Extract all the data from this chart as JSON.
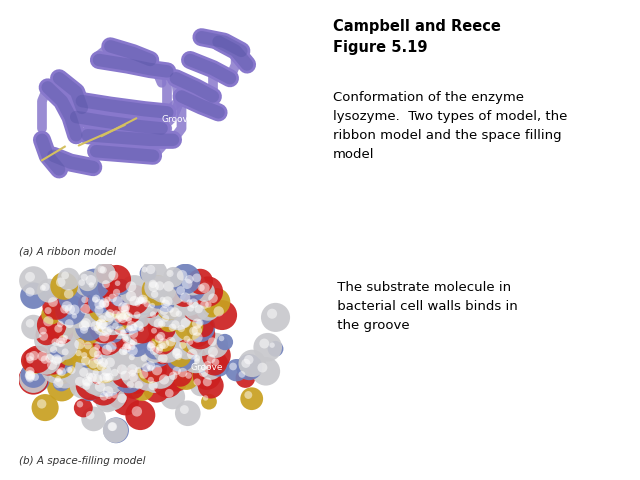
{
  "title_bold": "Campbell and Reece\nFigure 5.19",
  "description": "Conformation of the enzyme\nlysozyme.  Two types of model, the\nribbon model and the space filling\nmodel",
  "note": " The substrate molecule in\n bacterial cell walls binds in\n the groove",
  "caption_a": "(a) A ribbon model",
  "caption_b": "(b) A space-filling model",
  "groove_label": "Groove",
  "bg_color": "#ffffff",
  "image_bg": "#1a1a1a",
  "title_fontsize": 10.5,
  "desc_fontsize": 9.5,
  "caption_fontsize": 7.5,
  "ribbon_color": "#8878cc",
  "ribbon_dark": "#5050a0",
  "sphere_silver": "#c8c8cc",
  "sphere_red": "#cc2020",
  "sphere_blue": "#7080bb",
  "sphere_yellow": "#c8a020"
}
